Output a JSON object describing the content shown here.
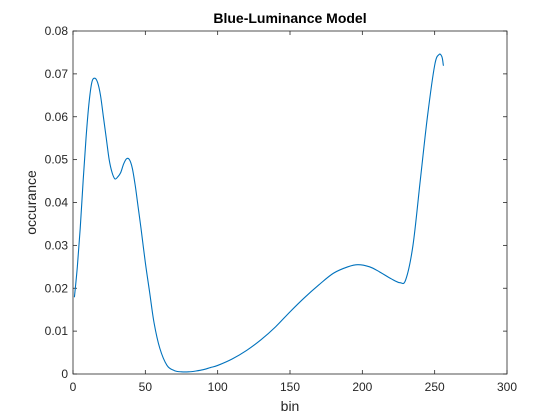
{
  "chart_data": {
    "type": "line",
    "title": "Blue-Luminance Model",
    "xlabel": "bin",
    "ylabel": "occurance",
    "xlim": [
      0,
      300
    ],
    "ylim": [
      0,
      0.08
    ],
    "x_ticks": [
      0,
      50,
      100,
      150,
      200,
      250,
      300
    ],
    "y_ticks": [
      0,
      0.01,
      0.02,
      0.03,
      0.04,
      0.05,
      0.06,
      0.07,
      0.08
    ],
    "x_tick_labels": [
      "0",
      "50",
      "100",
      "150",
      "200",
      "250",
      "300"
    ],
    "y_tick_labels": [
      "0",
      "0.01",
      "0.02",
      "0.03",
      "0.04",
      "0.05",
      "0.06",
      "0.07",
      "0.08"
    ],
    "grid": false,
    "box": true,
    "colors": {
      "line": "#0072BD",
      "axis": "#262626",
      "title": "#000000"
    },
    "series": [
      {
        "x": [
          1,
          3,
          5,
          7,
          9,
          11,
          13,
          15,
          17,
          19,
          21,
          23,
          25,
          27,
          29,
          31,
          33,
          35,
          37,
          39,
          41,
          43,
          45,
          47,
          50,
          53,
          56,
          60,
          65,
          70,
          75,
          80,
          85,
          90,
          95,
          100,
          110,
          120,
          130,
          140,
          150,
          160,
          170,
          180,
          190,
          197,
          205,
          212,
          220,
          226,
          230,
          235,
          240,
          245,
          250,
          253,
          255,
          256
        ],
        "y": [
          0.018,
          0.025,
          0.034,
          0.045,
          0.055,
          0.063,
          0.068,
          0.069,
          0.068,
          0.065,
          0.06,
          0.055,
          0.05,
          0.047,
          0.0455,
          0.046,
          0.047,
          0.049,
          0.0502,
          0.05,
          0.048,
          0.044,
          0.039,
          0.034,
          0.026,
          0.019,
          0.012,
          0.006,
          0.002,
          0.0008,
          0.0005,
          0.0005,
          0.0007,
          0.001,
          0.0015,
          0.002,
          0.0035,
          0.0055,
          0.008,
          0.011,
          0.0145,
          0.0178,
          0.0208,
          0.0235,
          0.025,
          0.0255,
          0.025,
          0.0238,
          0.0222,
          0.0213,
          0.022,
          0.03,
          0.045,
          0.06,
          0.072,
          0.0745,
          0.074,
          0.072
        ]
      }
    ]
  }
}
